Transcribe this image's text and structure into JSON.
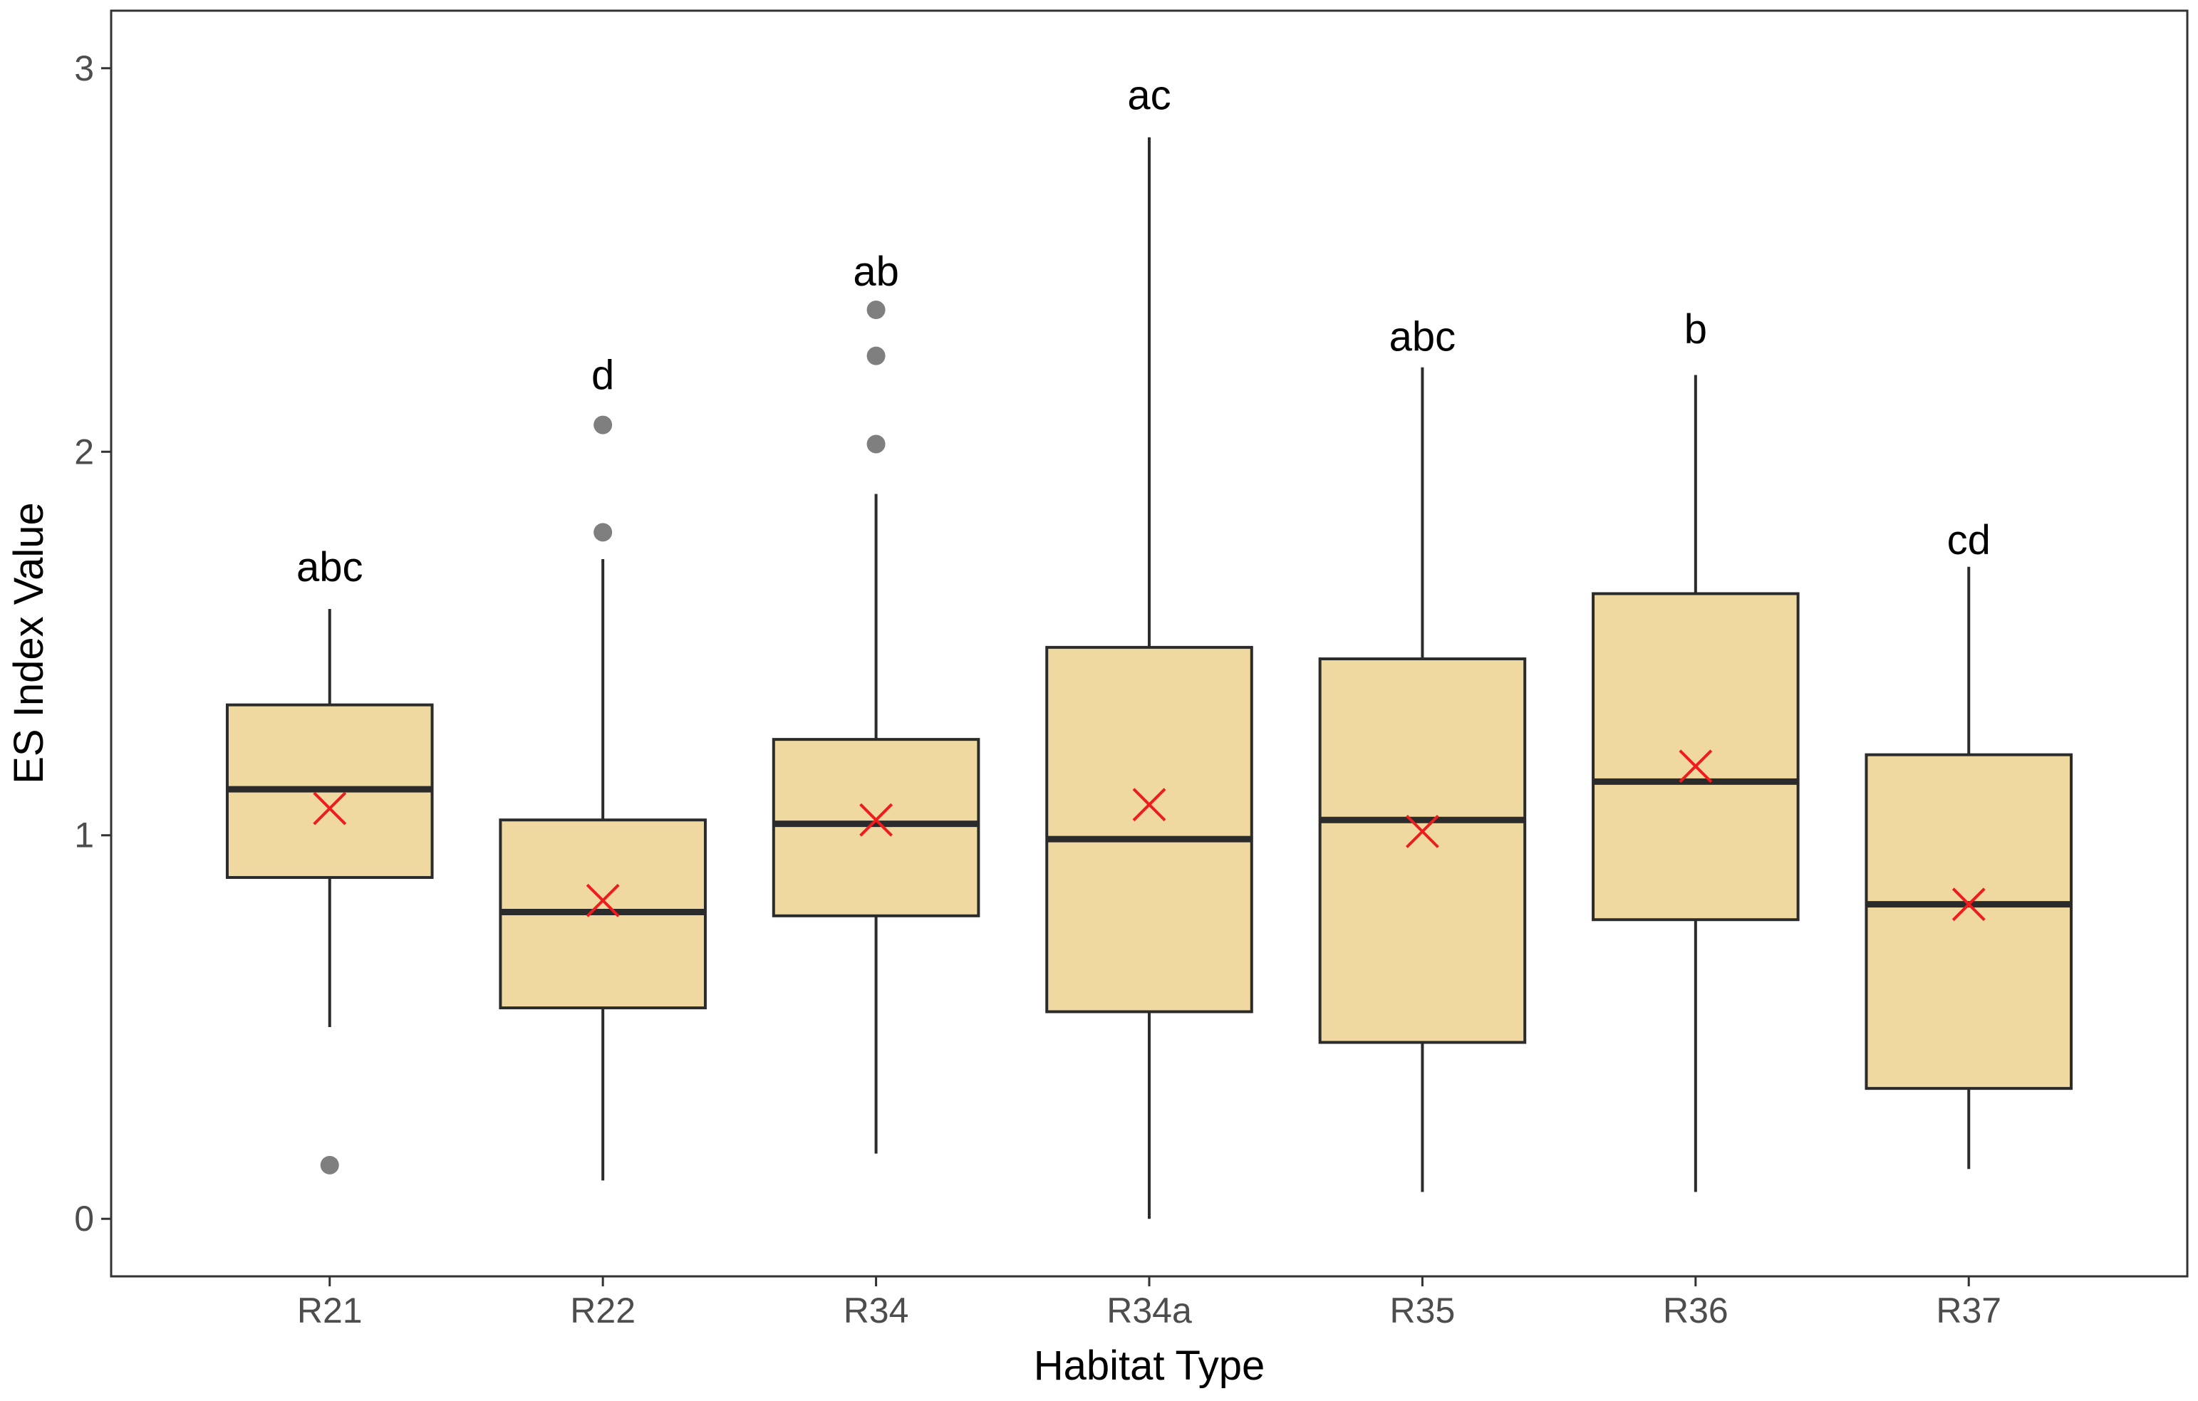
{
  "chart_data": {
    "type": "boxplot",
    "title": "",
    "xlabel": "Habitat Type",
    "ylabel": "ES Index Value",
    "ylim": [
      -0.15,
      3.15
    ],
    "yticks": [
      0,
      1,
      2,
      3
    ],
    "categories": [
      "R21",
      "R22",
      "R34",
      "R34a",
      "R35",
      "R36",
      "R37"
    ],
    "groups": [
      {
        "name": "R21",
        "whisker_low": 0.5,
        "q1": 0.89,
        "median": 1.12,
        "q3": 1.34,
        "whisker_high": 1.59,
        "mean": 1.07,
        "outliers": [
          0.14
        ],
        "letter": "abc"
      },
      {
        "name": "R22",
        "whisker_low": 0.1,
        "q1": 0.55,
        "median": 0.8,
        "q3": 1.04,
        "whisker_high": 1.72,
        "mean": 0.83,
        "outliers": [
          1.79,
          2.07
        ],
        "letter": "d"
      },
      {
        "name": "R34",
        "whisker_low": 0.17,
        "q1": 0.79,
        "median": 1.03,
        "q3": 1.25,
        "whisker_high": 1.89,
        "mean": 1.04,
        "outliers": [
          2.02,
          2.25,
          2.37
        ],
        "letter": "ab"
      },
      {
        "name": "R34a",
        "whisker_low": 0.0,
        "q1": 0.54,
        "median": 0.99,
        "q3": 1.49,
        "whisker_high": 2.82,
        "mean": 1.08,
        "outliers": [],
        "letter": "ac"
      },
      {
        "name": "R35",
        "whisker_low": 0.07,
        "q1": 0.46,
        "median": 1.04,
        "q3": 1.46,
        "whisker_high": 2.22,
        "mean": 1.01,
        "outliers": [],
        "letter": "abc"
      },
      {
        "name": "R36",
        "whisker_low": 0.07,
        "q1": 0.78,
        "median": 1.14,
        "q3": 1.63,
        "whisker_high": 2.2,
        "mean": 1.18,
        "outliers": [],
        "letter": "b"
      },
      {
        "name": "R37",
        "whisker_low": 0.13,
        "q1": 0.34,
        "median": 0.82,
        "q3": 1.21,
        "whisker_high": 1.7,
        "mean": 0.82,
        "outliers": [],
        "letter": "cd"
      }
    ],
    "letter_y": [
      1.7,
      2.2,
      2.47,
      2.93,
      2.3,
      2.32,
      1.77
    ],
    "colors": {
      "box_fill": "#f0d9a0",
      "box_stroke": "#2b2b2b",
      "median": "#2b2b2b",
      "whisker": "#2b2b2b",
      "outlier": "#7f7f7f",
      "mean_marker": "#ee1c1c",
      "panel_border": "#333333",
      "tick": "#333333"
    },
    "mean_marker": "x",
    "grid": false,
    "legend": "none"
  }
}
